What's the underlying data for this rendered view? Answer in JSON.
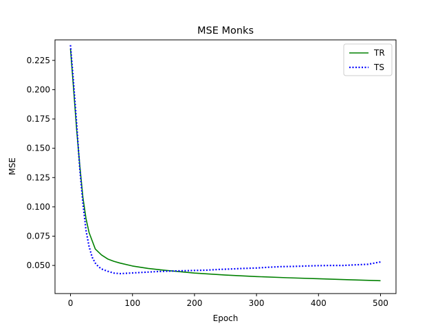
{
  "chart_data": {
    "type": "line",
    "title": "MSE Monks",
    "xlabel": "Epoch",
    "ylabel": "MSE",
    "xlim": [
      -25,
      525
    ],
    "ylim": [
      0.026,
      0.2425
    ],
    "xticks": [
      0,
      100,
      200,
      300,
      400,
      500
    ],
    "xtick_labels": [
      "0",
      "100",
      "200",
      "300",
      "400",
      "500"
    ],
    "yticks": [
      0.05,
      0.075,
      0.1,
      0.125,
      0.15,
      0.175,
      0.2,
      0.225
    ],
    "ytick_labels": [
      "0.050",
      "0.075",
      "0.100",
      "0.125",
      "0.150",
      "0.175",
      "0.200",
      "0.225"
    ],
    "grid": false,
    "legend_position": "top-right",
    "series": [
      {
        "name": "TR",
        "color": "#008000",
        "style": "solid",
        "x": [
          0,
          5,
          10,
          15,
          20,
          25,
          30,
          40,
          50,
          60,
          70,
          80,
          100,
          125,
          150,
          175,
          200,
          250,
          300,
          350,
          400,
          450,
          500
        ],
        "y": [
          0.235,
          0.2,
          0.165,
          0.135,
          0.108,
          0.09,
          0.078,
          0.064,
          0.059,
          0.0555,
          0.0535,
          0.052,
          0.0495,
          0.0475,
          0.046,
          0.0447,
          0.0435,
          0.0418,
          0.0405,
          0.0395,
          0.0387,
          0.0378,
          0.037
        ]
      },
      {
        "name": "TS",
        "color": "#0000ff",
        "style": "dotted",
        "x": [
          0,
          5,
          10,
          15,
          20,
          25,
          30,
          35,
          40,
          45,
          50,
          60,
          70,
          80,
          90,
          100,
          120,
          140,
          160,
          180,
          200,
          220,
          240,
          260,
          280,
          300,
          320,
          340,
          360,
          380,
          400,
          420,
          440,
          460,
          480,
          500
        ],
        "y": [
          0.238,
          0.205,
          0.17,
          0.132,
          0.103,
          0.08,
          0.066,
          0.057,
          0.052,
          0.049,
          0.047,
          0.045,
          0.0435,
          0.043,
          0.0433,
          0.0436,
          0.0442,
          0.0448,
          0.0452,
          0.0454,
          0.0457,
          0.046,
          0.0466,
          0.047,
          0.0475,
          0.0478,
          0.0485,
          0.049,
          0.0492,
          0.0495,
          0.0498,
          0.05,
          0.05,
          0.0505,
          0.051,
          0.053
        ]
      }
    ]
  }
}
